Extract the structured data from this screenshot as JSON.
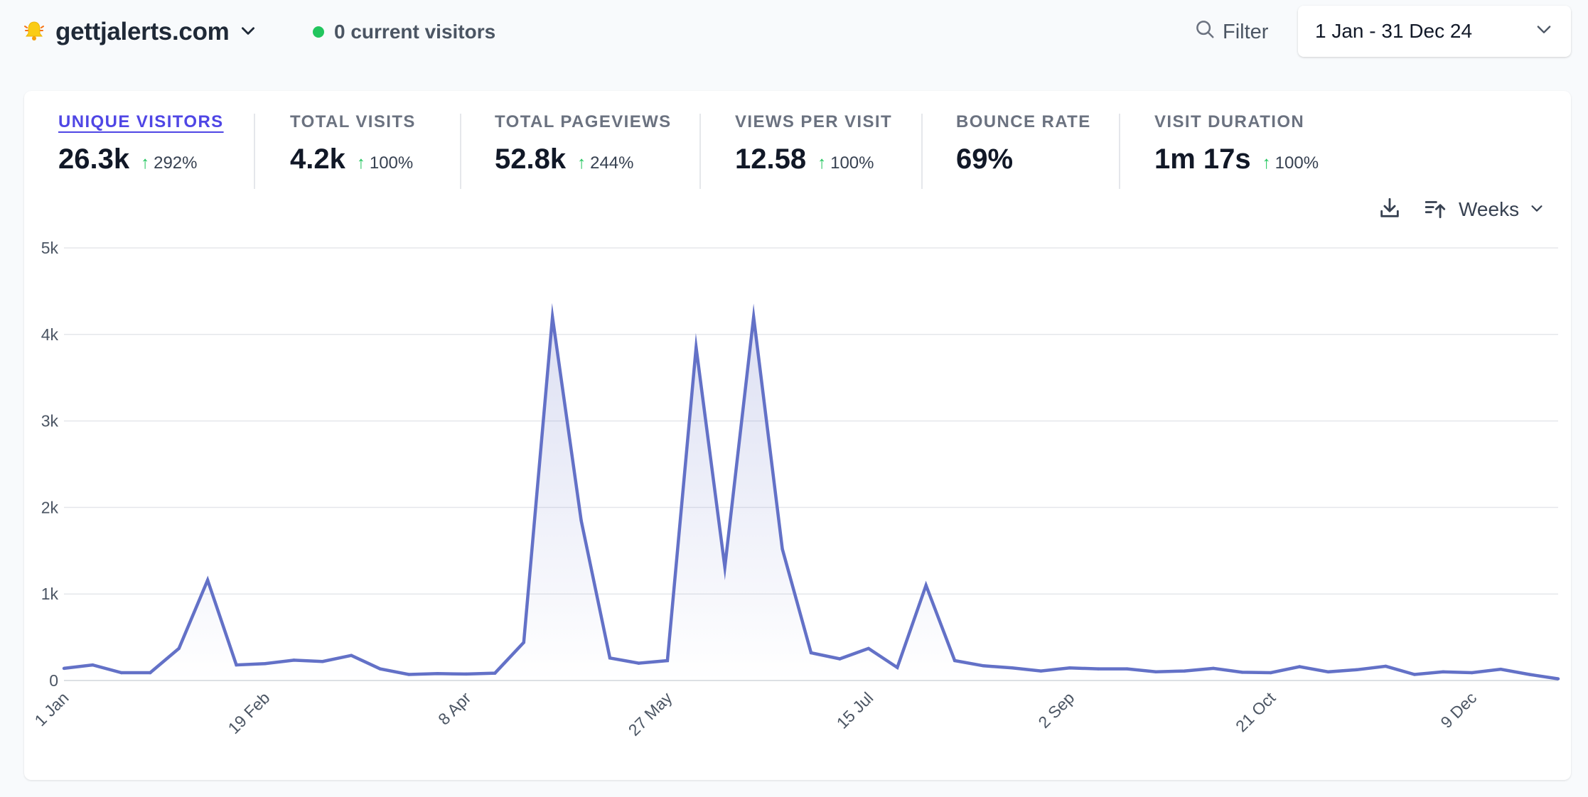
{
  "header": {
    "site_name": "gettjalerts.com",
    "current_visitors": "0 current visitors",
    "filter_label": "Filter",
    "date_range": "1 Jan - 31 Dec 24"
  },
  "metrics": [
    {
      "label": "UNIQUE VISITORS",
      "value": "26.3k",
      "change": "292%",
      "active": true
    },
    {
      "label": "TOTAL VISITS",
      "value": "4.2k",
      "change": "100%"
    },
    {
      "label": "TOTAL PAGEVIEWS",
      "value": "52.8k",
      "change": "244%"
    },
    {
      "label": "VIEWS PER VISIT",
      "value": "12.58",
      "change": "100%"
    },
    {
      "label": "BOUNCE RATE",
      "value": "69%",
      "change": ""
    },
    {
      "label": "VISIT DURATION",
      "value": "1m 17s",
      "change": "100%"
    }
  ],
  "toolbar": {
    "interval": "Weeks"
  },
  "colors": {
    "accent": "#6371c7",
    "positive": "#22c55e",
    "active_metric": "#4f46e5"
  },
  "chart_data": {
    "type": "area",
    "ylim": [
      0,
      5000
    ],
    "y_ticks": [
      "0",
      "1k",
      "2k",
      "3k",
      "4k",
      "5k"
    ],
    "x_ticks": [
      {
        "label": "1 Jan",
        "index": 0
      },
      {
        "label": "19 Feb",
        "index": 7
      },
      {
        "label": "8 Apr",
        "index": 14
      },
      {
        "label": "27 May",
        "index": 21
      },
      {
        "label": "15 Jul",
        "index": 28
      },
      {
        "label": "2 Sep",
        "index": 35
      },
      {
        "label": "21 Oct",
        "index": 42
      },
      {
        "label": "9 Dec",
        "index": 49
      }
    ],
    "series": [
      {
        "values": [
          140,
          180,
          90,
          90,
          370,
          1160,
          180,
          195,
          235,
          220,
          290,
          135,
          70,
          80,
          75,
          85,
          440,
          4200,
          1850,
          260,
          200,
          230,
          3850,
          1310,
          4200,
          1520,
          320,
          250,
          370,
          150,
          1100,
          230,
          170,
          145,
          110,
          145,
          135,
          135,
          100,
          110,
          140,
          95,
          90,
          160,
          100,
          125,
          165,
          70,
          100,
          90,
          130,
          70,
          20
        ]
      }
    ]
  }
}
